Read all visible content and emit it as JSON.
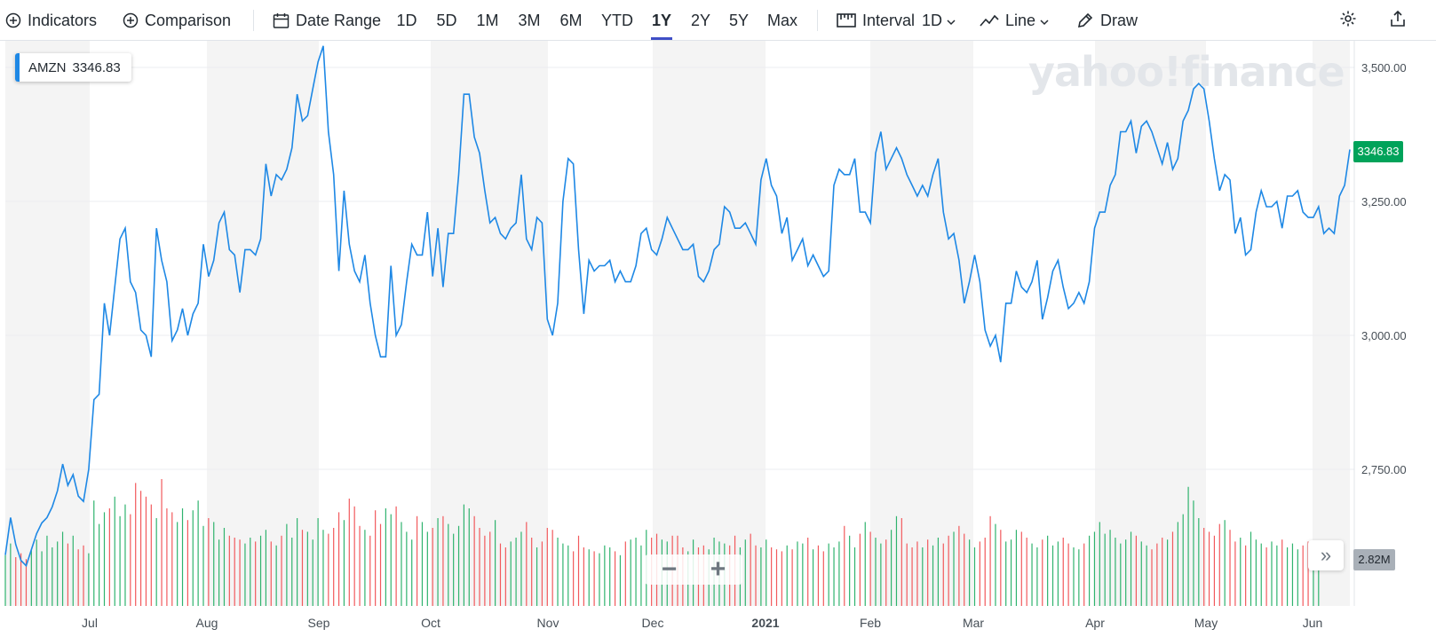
{
  "toolbar": {
    "indicators": "Indicators",
    "comparison": "Comparison",
    "date_range": "Date Range",
    "ranges": [
      "1D",
      "5D",
      "1M",
      "3M",
      "6M",
      "YTD",
      "1Y",
      "2Y",
      "5Y",
      "Max"
    ],
    "active_range": "1Y",
    "interval_label": "Interval",
    "interval_value": "1D",
    "chart_type": "Line",
    "draw": "Draw",
    "icons": [
      "plus-circle-icon",
      "plus-circle-icon",
      "calendar-icon",
      "ruler-icon",
      "chevron-down-icon",
      "line-chart-icon",
      "pencil-icon",
      "gear-icon",
      "share-icon"
    ]
  },
  "legend": {
    "symbol": "AMZN",
    "value": "3346.83"
  },
  "watermark": "yahoo!finance",
  "price_tag": "3346.83",
  "volume_tag": "2.82M",
  "zoom": {
    "minus": "−",
    "plus": "+"
  },
  "scroll_icon": "»",
  "colors": {
    "line": "#1e88e5",
    "up": "#2fb36e",
    "down": "#f2595c",
    "price_tag": "#00a35a",
    "band": "#f4f4f4"
  },
  "chart_data": {
    "type": "line",
    "series": [
      {
        "name": "AMZN",
        "values": [
          2590,
          2660,
          2610,
          2580,
          2570,
          2600,
          2630,
          2650,
          2660,
          2680,
          2710,
          2760,
          2720,
          2740,
          2700,
          2690,
          2750,
          2880,
          2890,
          3060,
          3000,
          3090,
          3180,
          3200,
          3100,
          3080,
          3010,
          3000,
          2960,
          3200,
          3140,
          3100,
          2990,
          3010,
          3050,
          3000,
          3040,
          3060,
          3170,
          3110,
          3140,
          3210,
          3230,
          3160,
          3150,
          3080,
          3160,
          3160,
          3150,
          3180,
          3320,
          3260,
          3300,
          3290,
          3310,
          3350,
          3450,
          3400,
          3410,
          3460,
          3510,
          3540,
          3380,
          3300,
          3120,
          3270,
          3170,
          3120,
          3100,
          3150,
          3060,
          3000,
          2960,
          2960,
          3130,
          3000,
          3020,
          3100,
          3170,
          3150,
          3150,
          3230,
          3110,
          3200,
          3090,
          3190,
          3190,
          3300,
          3450,
          3450,
          3370,
          3340,
          3270,
          3210,
          3220,
          3190,
          3180,
          3200,
          3210,
          3300,
          3180,
          3160,
          3220,
          3210,
          3030,
          3000,
          3060,
          3250,
          3330,
          3320,
          3160,
          3040,
          3140,
          3120,
          3130,
          3130,
          3140,
          3100,
          3120,
          3100,
          3100,
          3130,
          3190,
          3200,
          3160,
          3150,
          3180,
          3220,
          3200,
          3180,
          3160,
          3160,
          3170,
          3110,
          3100,
          3120,
          3160,
          3170,
          3240,
          3230,
          3200,
          3200,
          3210,
          3190,
          3170,
          3290,
          3330,
          3280,
          3260,
          3190,
          3220,
          3140,
          3160,
          3180,
          3130,
          3150,
          3130,
          3110,
          3120,
          3280,
          3310,
          3300,
          3300,
          3330,
          3230,
          3230,
          3210,
          3340,
          3380,
          3310,
          3330,
          3350,
          3330,
          3300,
          3280,
          3260,
          3280,
          3260,
          3300,
          3330,
          3230,
          3180,
          3190,
          3140,
          3060,
          3100,
          3150,
          3100,
          3010,
          2980,
          3000,
          2950,
          3060,
          3060,
          3120,
          3090,
          3080,
          3100,
          3140,
          3030,
          3070,
          3120,
          3140,
          3090,
          3050,
          3060,
          3080,
          3060,
          3100,
          3200,
          3230,
          3230,
          3280,
          3300,
          3380,
          3380,
          3400,
          3340,
          3390,
          3400,
          3380,
          3350,
          3320,
          3360,
          3310,
          3330,
          3400,
          3420,
          3460,
          3470,
          3460,
          3400,
          3330,
          3270,
          3300,
          3290,
          3190,
          3220,
          3150,
          3160,
          3230,
          3270,
          3240,
          3240,
          3250,
          3200,
          3260,
          3260,
          3270,
          3230,
          3220,
          3220,
          3240,
          3190,
          3200,
          3190,
          3260,
          3280,
          3346.83
        ]
      }
    ],
    "volume": {
      "values": [
        2.6,
        3.2,
        2.5,
        2.7,
        2.4,
        2.9,
        3.4,
        2.8,
        3.6,
        3.0,
        3.3,
        3.8,
        3.2,
        3.6,
        2.9,
        3.1,
        2.7,
        5.4,
        4.2,
        4.8,
        5.0,
        5.6,
        4.6,
        5.2,
        4.7,
        6.3,
        5.9,
        5.6,
        5.2,
        4.5,
        6.5,
        5.0,
        4.8,
        4.3,
        5.0,
        4.4,
        4.9,
        5.4,
        4.1,
        4.5,
        4.3,
        3.4,
        4.0,
        3.6,
        3.5,
        3.4,
        3.2,
        3.5,
        3.3,
        3.6,
        3.9,
        3.3,
        3.1,
        3.6,
        4.2,
        3.5,
        4.5,
        3.9,
        3.8,
        3.4,
        4.5,
        3.9,
        3.7,
        4.0,
        4.8,
        4.4,
        5.5,
        5.1,
        4.1,
        3.9,
        3.6,
        4.9,
        4.2,
        5.0,
        4.7,
        5.1,
        4.3,
        3.8,
        3.4,
        4.6,
        4.3,
        3.8,
        4.0,
        4.5,
        4.6,
        4.2,
        3.7,
        4.1,
        5.2,
        5.0,
        4.6,
        4.0,
        3.6,
        3.8,
        4.4,
        3.2,
        3.0,
        3.3,
        3.5,
        3.8,
        4.3,
        3.5,
        3.0,
        3.3,
        4.0,
        3.9,
        3.5,
        3.2,
        3.1,
        2.8,
        3.6,
        3.0,
        2.9,
        2.8,
        2.7,
        3.1,
        3.0,
        2.8,
        2.6,
        3.3,
        3.4,
        3.5,
        3.1,
        3.9,
        3.5,
        3.7,
        3.4,
        3.3,
        3.6,
        3.6,
        3.0,
        2.8,
        3.4,
        3.0,
        3.1,
        2.9,
        3.5,
        3.3,
        3.2,
        3.1,
        3.6,
        3.0,
        3.4,
        3.7,
        3.1,
        3.0,
        3.4,
        3.0,
        2.9,
        2.8,
        3.1,
        2.9,
        3.3,
        3.2,
        3.5,
        2.9,
        3.1,
        2.8,
        3.2,
        3.0,
        3.3,
        4.1,
        3.6,
        3.0,
        3.7,
        4.3,
        3.8,
        3.5,
        3.2,
        3.4,
        3.9,
        4.6,
        4.5,
        3.2,
        3.0,
        3.3,
        3.0,
        3.4,
        3.1,
        3.5,
        3.2,
        3.6,
        3.8,
        4.1,
        3.7,
        3.4,
        3.0,
        3.3,
        3.5,
        4.6,
        4.2,
        3.9,
        3.3,
        3.4,
        3.9,
        3.8,
        3.5,
        3.2,
        3.0,
        3.4,
        3.6,
        3.1,
        3.3,
        3.5,
        3.2,
        3.0,
        2.9,
        3.2,
        3.6,
        3.8,
        4.3,
        3.7,
        3.9,
        3.5,
        3.2,
        3.4,
        3.8,
        3.6,
        3.3,
        3.1,
        2.9,
        3.2,
        3.5,
        3.4,
        3.8,
        4.3,
        4.7,
        6.1,
        5.4,
        4.5,
        4.0,
        3.8,
        3.6,
        4.2,
        4.4,
        3.9,
        3.3,
        3.5,
        3.1,
        3.8,
        3.4,
        3.2,
        3.0,
        3.3,
        3.1,
        3.4,
        3.0,
        3.2,
        2.9,
        3.1,
        3.3,
        3.0,
        2.82
      ],
      "last": "2.82M"
    },
    "x_tick_labels": [
      "Jul",
      "Aug",
      "Sep",
      "Oct",
      "Nov",
      "Dec",
      "2021",
      "Feb",
      "Mar",
      "Apr",
      "May",
      "Jun"
    ],
    "y_tick_labels": [
      "3,500.00",
      "3,250.00",
      "3,000.00",
      "2,750.00"
    ],
    "y_ticks": [
      3500,
      3250,
      3000,
      2750
    ],
    "ylim": [
      2550,
      3550
    ],
    "grid": true
  }
}
